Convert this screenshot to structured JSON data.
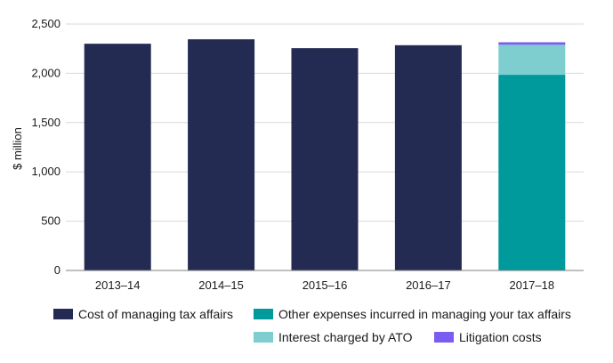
{
  "chart_data": {
    "type": "bar",
    "stacked": true,
    "title": "",
    "xlabel": "",
    "ylabel": "$ million",
    "ylim": [
      0,
      2500
    ],
    "yticks": [
      0,
      500,
      1000,
      1500,
      2000,
      2500
    ],
    "ytick_labels": [
      "0",
      "500",
      "1,000",
      "1,500",
      "2,000",
      "2,500"
    ],
    "grid": true,
    "legend_position": "bottom",
    "categories": [
      "2013–14",
      "2014–15",
      "2015–16",
      "2016–17",
      "2017–18"
    ],
    "series": [
      {
        "name": "Cost of managing tax affairs",
        "color": "#232b53",
        "values": [
          2300,
          2345,
          2255,
          2285,
          0
        ]
      },
      {
        "name": "Other expenses incurred in managing your tax affairs",
        "color": "#00999c",
        "values": [
          0,
          0,
          0,
          0,
          1985
        ]
      },
      {
        "name": "Interest charged by ATO",
        "color": "#7ecdcf",
        "values": [
          0,
          0,
          0,
          0,
          305
        ]
      },
      {
        "name": "Litigation costs",
        "color": "#7b5cf0",
        "values": [
          0,
          0,
          0,
          0,
          25
        ]
      }
    ]
  }
}
